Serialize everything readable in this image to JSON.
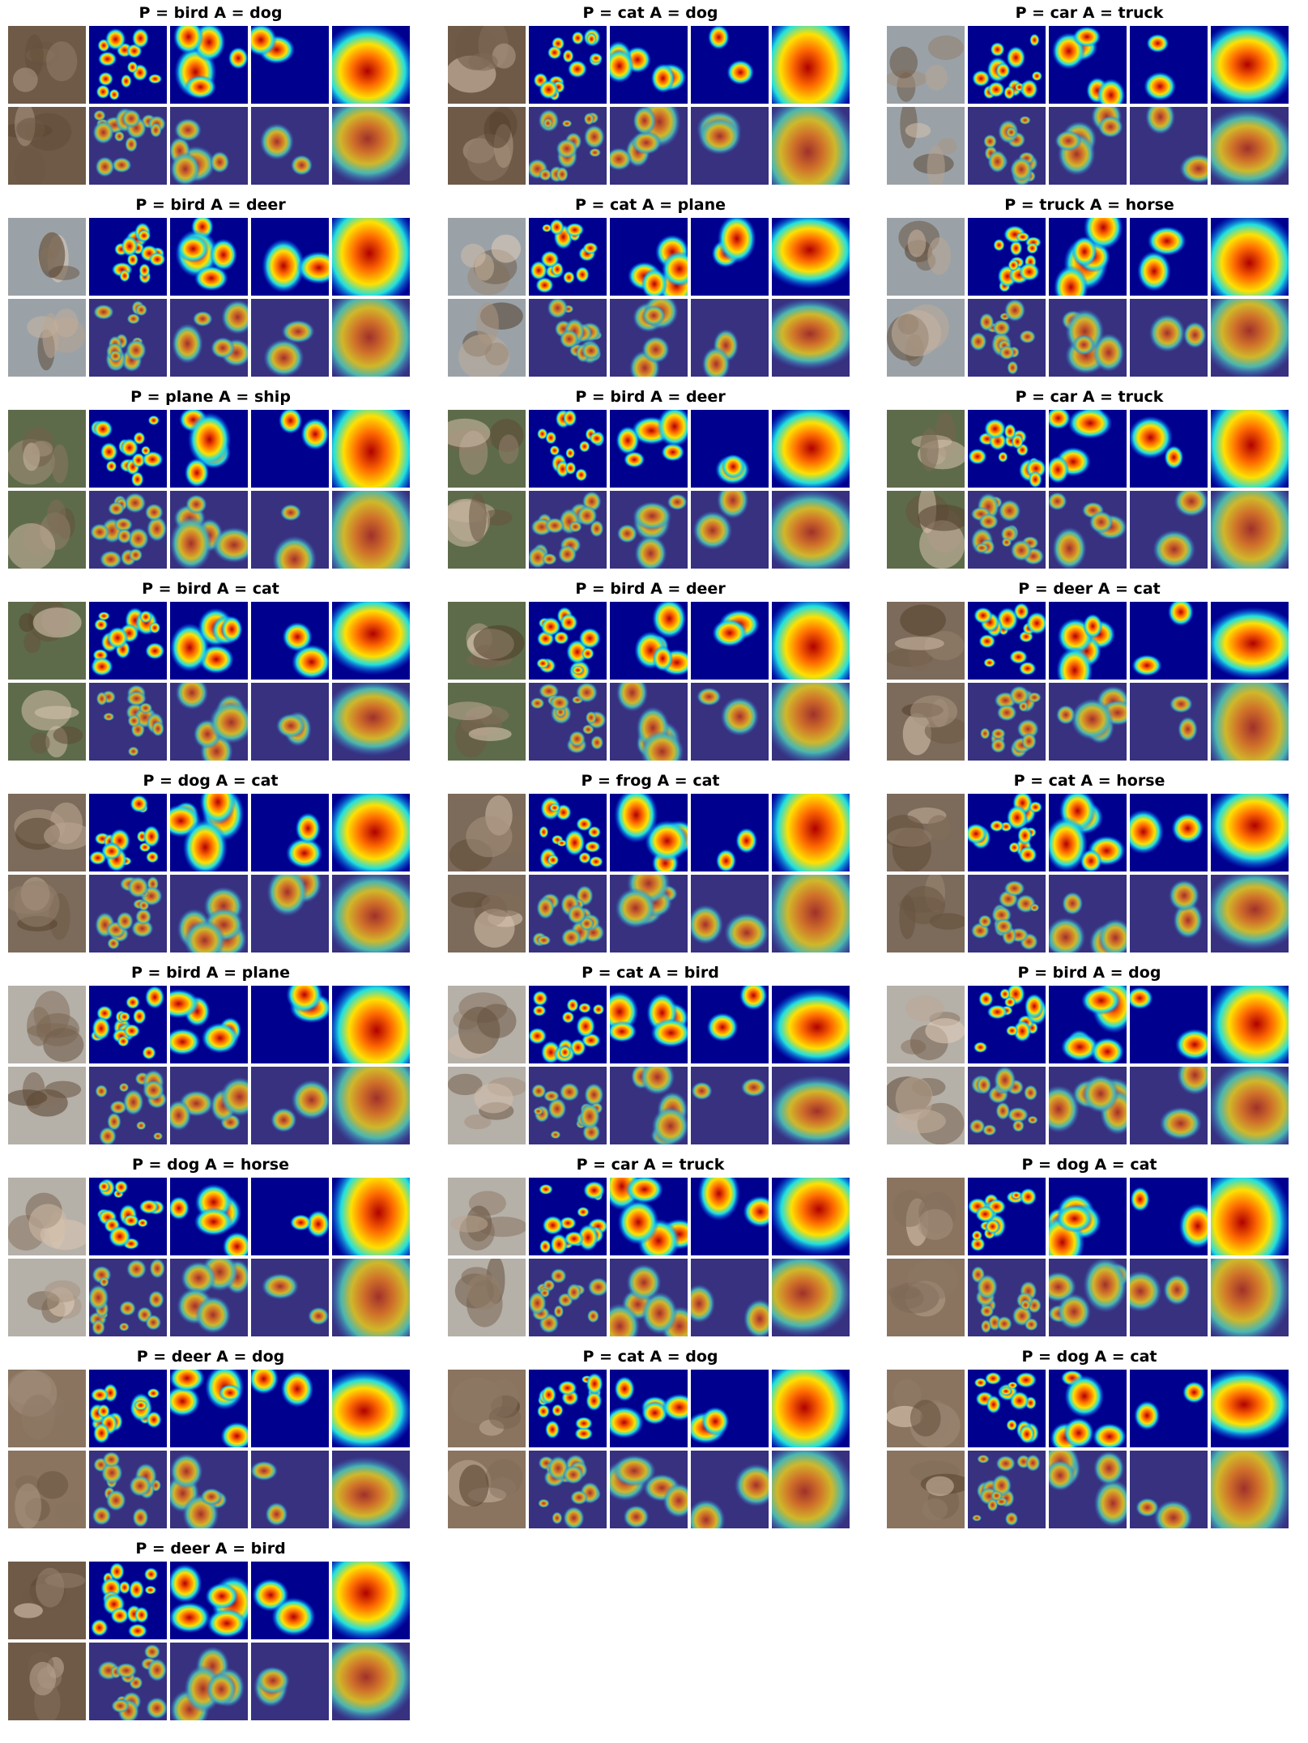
{
  "figure": {
    "panels": [
      {
        "title": "P = bird A = dog"
      },
      {
        "title": "P = cat A = dog"
      },
      {
        "title": "P = car A = truck"
      },
      {
        "title": "P = bird A = deer"
      },
      {
        "title": "P = cat A = plane"
      },
      {
        "title": "P = truck A = horse"
      },
      {
        "title": "P = plane A = ship"
      },
      {
        "title": "P = bird A = deer"
      },
      {
        "title": "P = car A = truck"
      },
      {
        "title": "P = bird A = cat"
      },
      {
        "title": "P = bird A = deer"
      },
      {
        "title": "P = deer A = cat"
      },
      {
        "title": "P = dog A = cat"
      },
      {
        "title": "P = frog A = cat"
      },
      {
        "title": "P = cat A = horse"
      },
      {
        "title": "P = bird A = plane"
      },
      {
        "title": "P = cat A = bird"
      },
      {
        "title": "P = bird A = dog"
      },
      {
        "title": "P = dog A = horse"
      },
      {
        "title": "P = car A = truck"
      },
      {
        "title": "P = dog A = cat"
      },
      {
        "title": "P = deer A = dog"
      },
      {
        "title": "P = cat A = dog"
      },
      {
        "title": "P = dog A = cat"
      },
      {
        "title": "P = deer A = bird"
      }
    ]
  },
  "colors": {
    "background": "#ffffff",
    "heatmap_low": "#00008f",
    "heatmap_high": "#b00000"
  }
}
